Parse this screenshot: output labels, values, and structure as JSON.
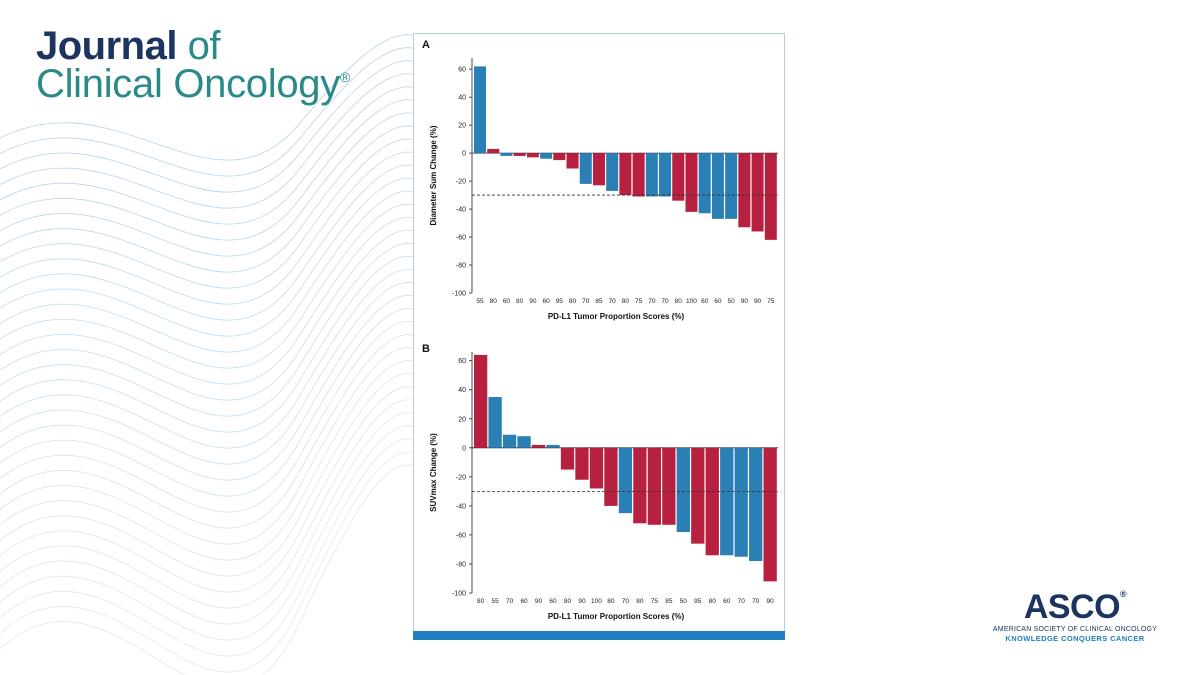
{
  "logo": {
    "journal": "Journal",
    "of": "of",
    "clinical_oncology": "Clinical Oncology",
    "registered": "®"
  },
  "asco": {
    "name": "ASCO",
    "registered": "®",
    "full_name": "AMERICAN SOCIETY OF CLINICAL ONCOLOGY",
    "tagline": "KNOWLEDGE CONQUERS CANCER"
  },
  "colors": {
    "blue_bar": "#2a7fb5",
    "red_bar": "#b7213f",
    "navy": "#1d3461",
    "teal": "#2a8a88"
  },
  "chart_data": [
    {
      "type": "bar",
      "panel_label": "A",
      "title": "",
      "xlabel": "PD-L1 Tumor Proportion Scores (%)",
      "ylabel": "Diameter Sum Change (%)",
      "ylim": [
        -100,
        70
      ],
      "yticks": [
        60,
        40,
        20,
        0,
        -20,
        -40,
        -60,
        -80,
        -100
      ],
      "threshold": -30,
      "categories": [
        "55",
        "80",
        "60",
        "80",
        "90",
        "60",
        "95",
        "80",
        "70",
        "85",
        "70",
        "80",
        "75",
        "70",
        "70",
        "80",
        "100",
        "60",
        "60",
        "50",
        "90",
        "90",
        "75"
      ],
      "values": [
        62,
        3,
        -2,
        -2,
        -3,
        -4,
        -5,
        -11,
        -22,
        -23,
        -27,
        -30,
        -31,
        -31,
        -31,
        -34,
        -42,
        -43,
        -47,
        -47,
        -53,
        -56,
        -62
      ],
      "colors": [
        "blue",
        "red",
        "blue",
        "red",
        "red",
        "blue",
        "red",
        "red",
        "blue",
        "red",
        "blue",
        "red",
        "red",
        "blue",
        "blue",
        "red",
        "red",
        "blue",
        "blue",
        "blue",
        "red",
        "red",
        "red"
      ]
    },
    {
      "type": "bar",
      "panel_label": "B",
      "title": "",
      "xlabel": "PD-L1 Tumor Proportion Scores (%)",
      "ylabel": "SUVmax Change (%)",
      "ylim": [
        -100,
        65
      ],
      "yticks": [
        60,
        40,
        20,
        0,
        -20,
        -40,
        -60,
        -80,
        -100
      ],
      "threshold": -30,
      "categories": [
        "80",
        "55",
        "70",
        "60",
        "90",
        "60",
        "80",
        "90",
        "100",
        "80",
        "70",
        "80",
        "75",
        "85",
        "50",
        "95",
        "80",
        "60",
        "70",
        "70",
        "90"
      ],
      "values": [
        64,
        35,
        9,
        8,
        2,
        2,
        -15,
        -22,
        -28,
        -40,
        -45,
        -52,
        -53,
        -53,
        -58,
        -66,
        -74,
        -74,
        -75,
        -78,
        -92
      ],
      "colors": [
        "red",
        "blue",
        "blue",
        "blue",
        "red",
        "blue",
        "red",
        "red",
        "red",
        "red",
        "blue",
        "red",
        "red",
        "red",
        "blue",
        "red",
        "red",
        "blue",
        "blue",
        "blue",
        "red"
      ]
    }
  ]
}
